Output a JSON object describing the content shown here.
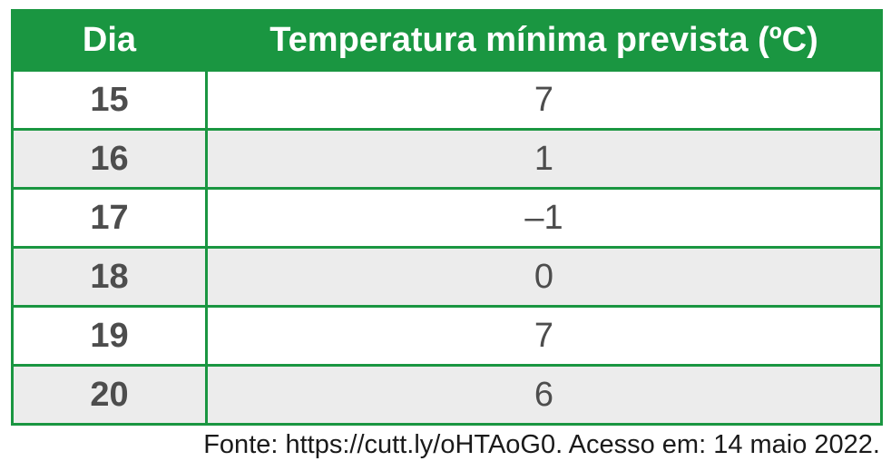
{
  "table": {
    "headers": [
      "Dia",
      "Temperatura mínima prevista (ºC)"
    ],
    "rows": [
      {
        "day": "15",
        "temp": "7"
      },
      {
        "day": "16",
        "temp": "1"
      },
      {
        "day": "17",
        "temp": "–1"
      },
      {
        "day": "18",
        "temp": "0"
      },
      {
        "day": "19",
        "temp": "7"
      },
      {
        "day": "20",
        "temp": "6"
      }
    ]
  },
  "source": "Fonte: https://cutt.ly/oHTAoG0. Acesso em: 14 maio 2022.",
  "colors": {
    "header_bg": "#1a9641",
    "border": "#1a9641",
    "row_alt_bg": "#ececec",
    "text": "#4d4d4d"
  }
}
